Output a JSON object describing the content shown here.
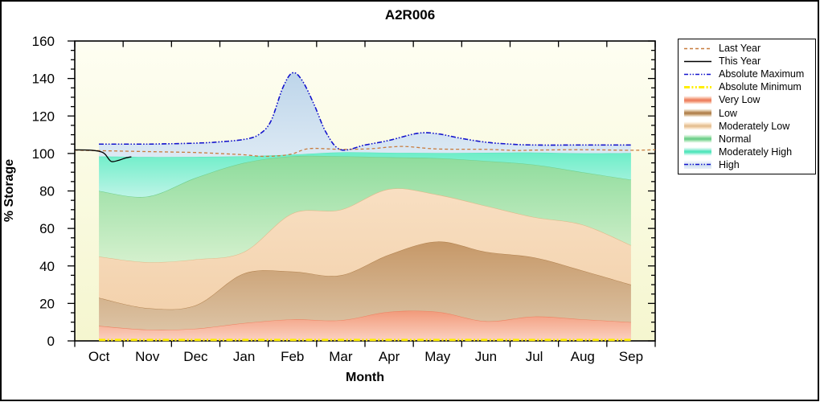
{
  "title": "A2R006",
  "chart_data": {
    "type": "area",
    "title": "A2R006",
    "xlabel": "Month",
    "ylabel": "% Storage",
    "ylim": [
      0,
      160
    ],
    "y_major_step": 20,
    "y_minor_step": 5,
    "grid": false,
    "legend_position": "top-right",
    "categories": [
      "Oct",
      "Nov",
      "Dec",
      "Jan",
      "Feb",
      "Mar",
      "Apr",
      "May",
      "Jun",
      "Jul",
      "Aug",
      "Sep"
    ],
    "bands": [
      {
        "name": "Very Low",
        "line_color": "#ee8161",
        "fill_top": "#f29c7d",
        "fill_bottom": "#fbd2c2",
        "top": [
          8,
          6,
          6.5,
          9.5,
          11.5,
          11,
          15.5,
          15.5,
          10.5,
          13,
          11.5,
          10
        ]
      },
      {
        "name": "Low",
        "line_color": "#b2824f",
        "fill_top": "#c6provide",
        "fill_bottom": "#dcc3a4",
        "top": [
          23,
          17.5,
          19,
          36,
          37,
          35,
          46,
          53,
          47.5,
          44.5,
          37.5,
          30
        ]
      },
      {
        "name": "Moderately Low",
        "line_color": "#dfb888",
        "fill_top": "#f8dfc2",
        "fill_bottom": "#f3d2ad",
        "top": [
          45,
          42,
          43.5,
          47.5,
          68,
          70,
          81,
          78,
          72,
          66,
          62,
          51
        ]
      },
      {
        "name": "Normal",
        "line_color": "#6fcf8c",
        "fill_top": "#8edc9c",
        "fill_bottom": "#d4f0cd",
        "top": [
          80,
          77,
          87,
          95,
          98.5,
          98.5,
          98,
          97.5,
          96,
          94,
          90,
          86
        ]
      },
      {
        "name": "Moderately High",
        "line_color": "#55e6bb",
        "fill_top": "#6ceec8",
        "fill_bottom": "#bcf4e6",
        "top": [
          98.4,
          98.1,
          98.2,
          98.5,
          99.4,
          100.6,
          100.4,
          100.2,
          100.4,
          100.5,
          100.1,
          100.2
        ]
      },
      {
        "name": "High",
        "line_color": "#1414cd",
        "line_style": "dashdotdot",
        "fill_top": "#bdd5ea",
        "fill_bottom": "#dce9f4",
        "top_points": [
          [
            0,
            105
          ],
          [
            1,
            105
          ],
          [
            2,
            105.5
          ],
          [
            2.5,
            106.2
          ],
          [
            3,
            107.5
          ],
          [
            3.3,
            110
          ],
          [
            3.55,
            117
          ],
          [
            3.8,
            135
          ],
          [
            4,
            143
          ],
          [
            4.2,
            139
          ],
          [
            4.45,
            126
          ],
          [
            4.7,
            111
          ],
          [
            5,
            102
          ],
          [
            5.5,
            104.5
          ],
          [
            6,
            107
          ],
          [
            6.6,
            110.8
          ],
          [
            7,
            110.5
          ],
          [
            7.5,
            108
          ],
          [
            8,
            106
          ],
          [
            8.5,
            105
          ],
          [
            9,
            104.5
          ],
          [
            10,
            104.5
          ],
          [
            11,
            104.5
          ]
        ]
      }
    ],
    "series": [
      {
        "name": "Last Year",
        "color": "#c87c3e",
        "style": "dashed",
        "points": [
          [
            -0.5,
            101.8
          ],
          [
            0,
            101.5
          ],
          [
            1,
            101
          ],
          [
            2,
            100.5
          ],
          [
            2.7,
            99.7
          ],
          [
            3,
            99.3
          ],
          [
            3.35,
            98.5
          ],
          [
            3.7,
            98.7
          ],
          [
            4,
            99.8
          ],
          [
            4.35,
            102.6
          ],
          [
            5,
            102.2
          ],
          [
            5.6,
            102.5
          ],
          [
            6,
            103.4
          ],
          [
            6.35,
            103.7
          ],
          [
            7,
            102.4
          ],
          [
            8,
            102.2
          ],
          [
            8.6,
            101.6
          ],
          [
            9,
            101.8
          ],
          [
            10,
            102
          ],
          [
            11,
            101.7
          ],
          [
            11.5,
            102
          ]
        ]
      },
      {
        "name": "This Year",
        "color": "#000000",
        "style": "solid",
        "points": [
          [
            -0.5,
            101.9
          ],
          [
            -0.2,
            101.8
          ],
          [
            0,
            101.2
          ],
          [
            0.12,
            99.8
          ],
          [
            0.25,
            95.8
          ],
          [
            0.4,
            96.3
          ],
          [
            0.55,
            97.6
          ],
          [
            0.67,
            98.2
          ]
        ]
      },
      {
        "name": "Absolute Maximum",
        "color": "#1414cd",
        "style": "dashdotdot",
        "points_ref": "band:High"
      },
      {
        "name": "Absolute Minimum",
        "color": "#ffee00",
        "style": "thick_dashdotdot",
        "points": [
          [
            0,
            0.5
          ],
          [
            11,
            0.5
          ]
        ]
      }
    ],
    "legend": {
      "items": [
        {
          "label": "Last Year",
          "swatch": "line-dashed",
          "color": "#c87c3e"
        },
        {
          "label": "This Year",
          "swatch": "line-solid",
          "color": "#000000"
        },
        {
          "label": "Absolute Maximum",
          "swatch": "line-dashdotdot",
          "color": "#1414cd"
        },
        {
          "label": "Absolute Minimum",
          "swatch": "line-thick-dashdotdot",
          "color": "#ffee00"
        },
        {
          "label": "Very Low",
          "swatch": "band",
          "color": "#ee8161",
          "fill": "#f7b89e"
        },
        {
          "label": "Low",
          "swatch": "band",
          "color": "#b2824f",
          "fill": "#d9bd97"
        },
        {
          "label": "Moderately Low",
          "swatch": "band",
          "color": "#e5c094",
          "fill": "#f8e0c2"
        },
        {
          "label": "Normal",
          "swatch": "band",
          "color": "#6fcf8c",
          "fill": "#b2e8bd"
        },
        {
          "label": "Moderately High",
          "swatch": "band",
          "color": "#52e6bc",
          "fill": "#a8f1de"
        },
        {
          "label": "High",
          "swatch": "band-line",
          "color": "#1414cd",
          "fill": "#cfe0f0"
        }
      ]
    }
  }
}
